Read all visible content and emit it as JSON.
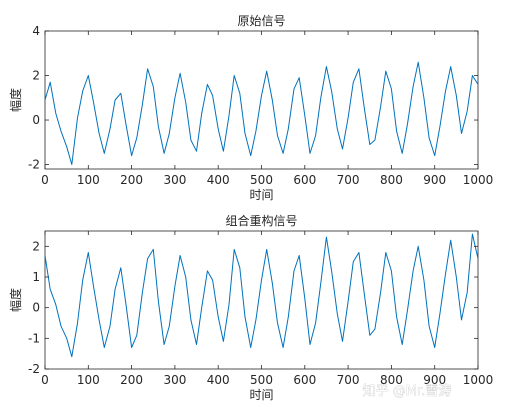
{
  "watermark": "知乎 @Mr.雪涛",
  "colors": {
    "line": "#0072BD",
    "axis": "#262626"
  },
  "chart_data": [
    {
      "type": "line",
      "title": "原始信号",
      "xlabel": "时间",
      "ylabel": "幅度",
      "xlim": [
        0,
        1000
      ],
      "ylim": [
        -2.2,
        4
      ],
      "xticks": [
        0,
        100,
        200,
        300,
        400,
        500,
        600,
        700,
        800,
        900,
        1000
      ],
      "yticks": [
        -2,
        0,
        2,
        4
      ],
      "grid": false,
      "series": [
        {
          "x": [
            0,
            12,
            25,
            37,
            50,
            62,
            75,
            87,
            100,
            112,
            125,
            137,
            150,
            162,
            175,
            187,
            200,
            212,
            225,
            237,
            250,
            262,
            275,
            287,
            300,
            312,
            325,
            337,
            350,
            362,
            375,
            387,
            400,
            412,
            425,
            437,
            450,
            462,
            475,
            487,
            500,
            512,
            525,
            537,
            550,
            562,
            575,
            587,
            600,
            612,
            625,
            637,
            650,
            662,
            675,
            687,
            700,
            712,
            725,
            737,
            750,
            762,
            775,
            787,
            800,
            812,
            825,
            837,
            850,
            862,
            875,
            887,
            900,
            912,
            925,
            937,
            950,
            962,
            975,
            987,
            1000
          ],
          "y": [
            0.9,
            1.7,
            0.3,
            -0.5,
            -1.2,
            -2.0,
            0.1,
            1.3,
            2.0,
            0.8,
            -0.6,
            -1.5,
            -0.4,
            0.9,
            1.2,
            -0.2,
            -1.6,
            -0.8,
            0.7,
            2.3,
            1.5,
            -0.3,
            -1.5,
            -0.6,
            1.0,
            2.1,
            0.8,
            -0.9,
            -1.4,
            0.3,
            1.6,
            1.1,
            -0.4,
            -1.4,
            0.2,
            2.0,
            1.2,
            -0.6,
            -1.6,
            -0.5,
            1.1,
            2.2,
            0.9,
            -0.7,
            -1.5,
            -0.4,
            1.4,
            1.9,
            0.2,
            -1.5,
            -0.7,
            1.0,
            2.4,
            1.3,
            -0.4,
            -1.3,
            0.1,
            1.7,
            2.3,
            0.6,
            -1.1,
            -0.9,
            0.6,
            2.2,
            1.4,
            -0.5,
            -1.5,
            -0.2,
            1.5,
            2.6,
            1.0,
            -0.8,
            -1.6,
            -0.3,
            1.3,
            2.4,
            1.1,
            -0.6,
            0.4,
            2.0,
            1.6
          ]
        }
      ]
    },
    {
      "type": "line",
      "title": "组合重构信号",
      "xlabel": "时间",
      "ylabel": "幅度",
      "xlim": [
        0,
        1000
      ],
      "ylim": [
        -2,
        2.5
      ],
      "xticks": [
        0,
        100,
        200,
        300,
        400,
        500,
        600,
        700,
        800,
        900,
        1000
      ],
      "yticks": [
        -2,
        -1,
        0,
        1,
        2
      ],
      "grid": false,
      "series": [
        {
          "x": [
            0,
            12,
            25,
            37,
            50,
            62,
            75,
            87,
            100,
            112,
            125,
            137,
            150,
            162,
            175,
            187,
            200,
            212,
            225,
            237,
            250,
            262,
            275,
            287,
            300,
            312,
            325,
            337,
            350,
            362,
            375,
            387,
            400,
            412,
            425,
            437,
            450,
            462,
            475,
            487,
            500,
            512,
            525,
            537,
            550,
            562,
            575,
            587,
            600,
            612,
            625,
            637,
            650,
            662,
            675,
            687,
            700,
            712,
            725,
            737,
            750,
            762,
            775,
            787,
            800,
            812,
            825,
            837,
            850,
            862,
            875,
            887,
            900,
            912,
            925,
            937,
            950,
            962,
            975,
            987,
            1000
          ],
          "y": [
            1.7,
            0.6,
            0.1,
            -0.6,
            -1.0,
            -1.6,
            -0.5,
            0.9,
            1.8,
            0.7,
            -0.4,
            -1.3,
            -0.6,
            0.6,
            1.3,
            0.1,
            -1.3,
            -0.9,
            0.5,
            1.6,
            1.9,
            0.2,
            -1.2,
            -0.6,
            0.7,
            1.7,
            1.0,
            -0.4,
            -1.2,
            0.0,
            1.2,
            0.9,
            -0.3,
            -1.1,
            0.1,
            1.9,
            1.3,
            -0.3,
            -1.3,
            -0.4,
            0.9,
            1.9,
            0.8,
            -0.5,
            -1.3,
            -0.3,
            1.2,
            1.7,
            0.3,
            -1.2,
            -0.5,
            0.8,
            2.3,
            1.2,
            -0.2,
            -1.1,
            0.2,
            1.5,
            1.8,
            0.5,
            -0.9,
            -0.7,
            0.5,
            1.8,
            1.2,
            -0.3,
            -1.2,
            -0.1,
            1.2,
            2.0,
            0.9,
            -0.6,
            -1.3,
            -0.2,
            1.1,
            2.2,
            1.0,
            -0.4,
            0.5,
            2.4,
            1.6
          ]
        }
      ]
    }
  ]
}
